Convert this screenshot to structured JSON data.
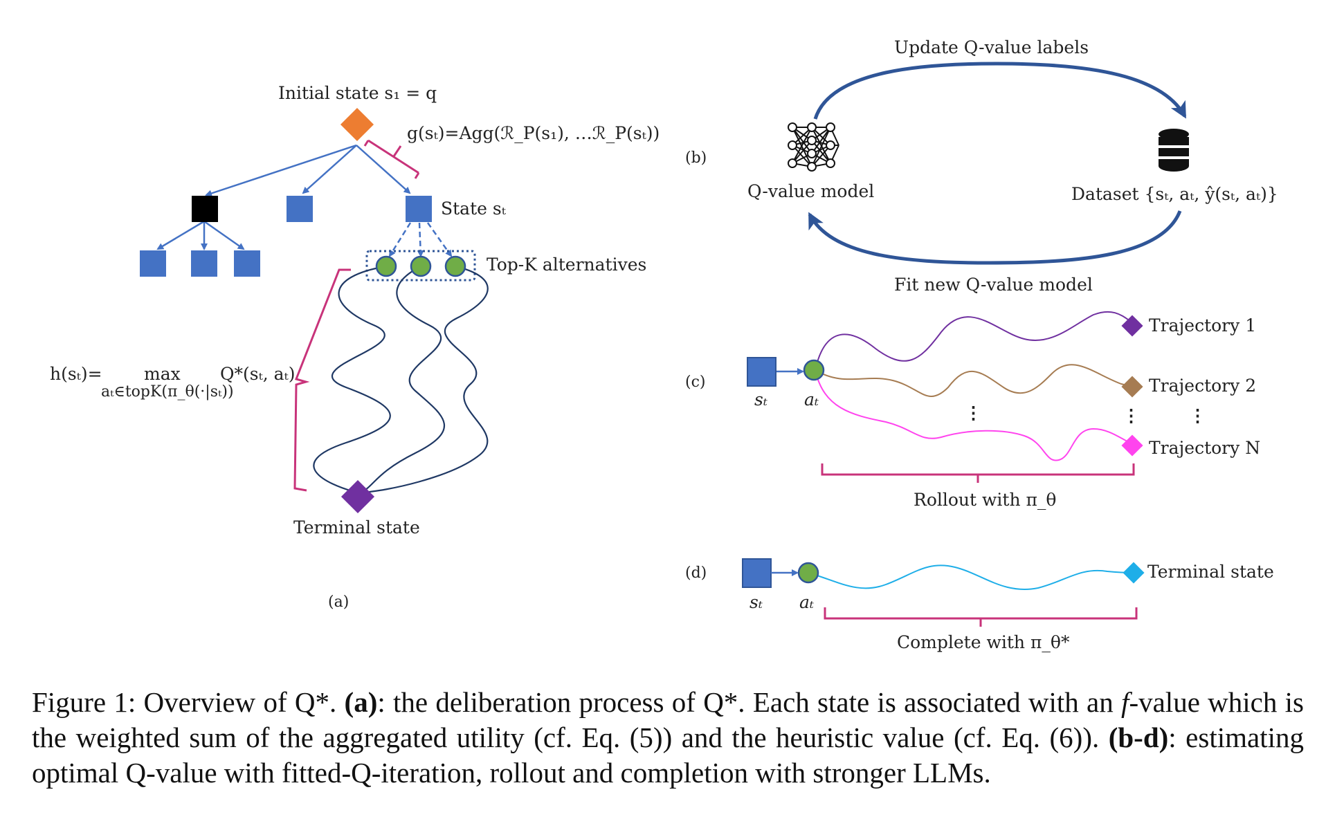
{
  "panel_a": {
    "initial_state": "Initial state s₁ = q",
    "g_formula": "g(sₜ)=Agg(ℛ_P(s₁), …ℛ_P(sₜ))",
    "state_label": "State sₜ",
    "topk_label": "Top-K alternatives",
    "h_formula_left": "h(sₜ)=",
    "h_formula_max": "max",
    "h_formula_sub": "aₜ∈topK(π_θ(·|sₜ))",
    "h_formula_right": "Q*(sₜ, aₜ)",
    "terminal_label": "Terminal state",
    "panel_label": "(a)"
  },
  "panel_b": {
    "panel_label": "(b)",
    "top_label": "Update Q-value labels",
    "bottom_label": "Fit new Q-value model",
    "model_label": "Q-value model",
    "dataset_label": "Dataset {sₜ, aₜ, ŷ(sₜ, aₜ)}",
    "model_icon": "neural-network-icon",
    "dataset_icon": "database-icon"
  },
  "panel_c": {
    "panel_label": "(c)",
    "state": "sₜ",
    "action": "aₜ",
    "trajectories": [
      "Trajectory 1",
      "Trajectory 2",
      "Trajectory N"
    ],
    "rollout_label": "Rollout with π_θ",
    "ellipsis": "⋮"
  },
  "panel_d": {
    "panel_label": "(d)",
    "state": "sₜ",
    "action": "aₜ",
    "terminal_label": "Terminal state",
    "complete_label": "Complete with π_θ*"
  },
  "colors": {
    "blue_node": "#4472c4",
    "orange": "#ed7d31",
    "green": "#70ad47",
    "purple": "#7030a0",
    "brown": "#a67c52",
    "magenta": "#ff44ee",
    "cyan": "#1eaee8",
    "bracket": "#c8337a",
    "arrow": "#4472c4"
  },
  "caption": {
    "prefix": "Figure 1: Overview of Q*. ",
    "a_label": "(a)",
    "a_text": ": the deliberation process of Q*. Each state is associated with an ",
    "f_symbol": "f",
    "a_text2": "-value which is the weighted sum of the aggregated utility (cf. Eq. (5)) and the heuristic value (cf. Eq. (6)). ",
    "bd_label": "(b-d)",
    "bd_text": ": estimating optimal Q-value with fitted-Q-iteration, rollout and completion with stronger LLMs."
  }
}
